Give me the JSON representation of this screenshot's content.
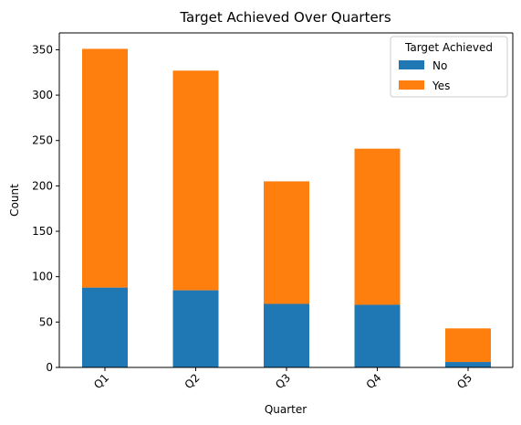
{
  "chart_data": {
    "type": "bar",
    "stacked": true,
    "title": "Target Achieved Over Quarters",
    "xlabel": "Quarter",
    "ylabel": "Count",
    "categories": [
      "Q1",
      "Q2",
      "Q3",
      "Q4",
      "Q5"
    ],
    "series": [
      {
        "name": "No",
        "values": [
          88,
          85,
          70,
          69,
          6
        ],
        "color": "#1f77b4"
      },
      {
        "name": "Yes",
        "values": [
          263,
          242,
          135,
          172,
          37
        ],
        "color": "#ff7f0e"
      }
    ],
    "ylim": [
      0,
      368.55
    ],
    "yticks": [
      0,
      50,
      100,
      150,
      200,
      250,
      300,
      350
    ],
    "legend": {
      "title": "Target Achieved",
      "placement": "top-right"
    },
    "grid": false
  }
}
